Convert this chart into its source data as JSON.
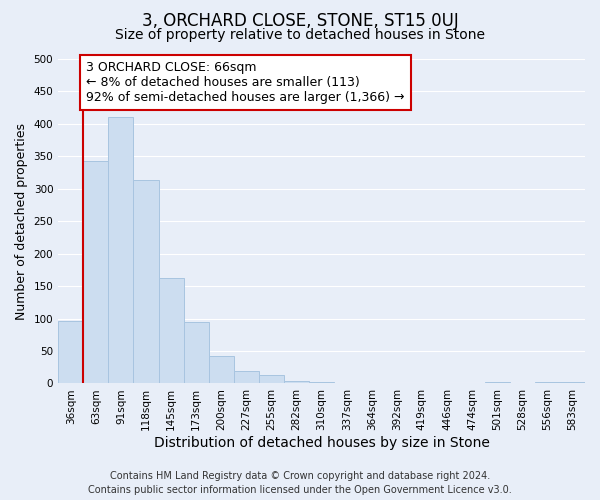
{
  "title": "3, ORCHARD CLOSE, STONE, ST15 0UJ",
  "subtitle": "Size of property relative to detached houses in Stone",
  "xlabel": "Distribution of detached houses by size in Stone",
  "ylabel": "Number of detached properties",
  "bar_labels": [
    "36sqm",
    "63sqm",
    "91sqm",
    "118sqm",
    "145sqm",
    "173sqm",
    "200sqm",
    "227sqm",
    "255sqm",
    "282sqm",
    "310sqm",
    "337sqm",
    "364sqm",
    "392sqm",
    "419sqm",
    "446sqm",
    "474sqm",
    "501sqm",
    "528sqm",
    "556sqm",
    "583sqm"
  ],
  "bar_values": [
    97,
    343,
    411,
    313,
    162,
    95,
    42,
    19,
    13,
    4,
    3,
    0,
    0,
    0,
    0,
    0,
    0,
    2,
    0,
    2,
    2
  ],
  "bar_color": "#ccddf0",
  "bar_edge_color": "#a8c4e0",
  "property_line_color": "#cc0000",
  "annotation_text": "3 ORCHARD CLOSE: 66sqm\n← 8% of detached houses are smaller (113)\n92% of semi-detached houses are larger (1,366) →",
  "annotation_box_color": "#ffffff",
  "annotation_box_edge": "#cc0000",
  "ylim": [
    0,
    500
  ],
  "yticks": [
    0,
    50,
    100,
    150,
    200,
    250,
    300,
    350,
    400,
    450,
    500
  ],
  "footer_line1": "Contains HM Land Registry data © Crown copyright and database right 2024.",
  "footer_line2": "Contains public sector information licensed under the Open Government Licence v3.0.",
  "bg_color": "#e8eef8",
  "plot_bg_color": "#e8eef8",
  "grid_color": "#ffffff",
  "title_fontsize": 12,
  "subtitle_fontsize": 10,
  "xlabel_fontsize": 10,
  "ylabel_fontsize": 9,
  "tick_fontsize": 7.5,
  "annotation_fontsize": 9,
  "footer_fontsize": 7
}
